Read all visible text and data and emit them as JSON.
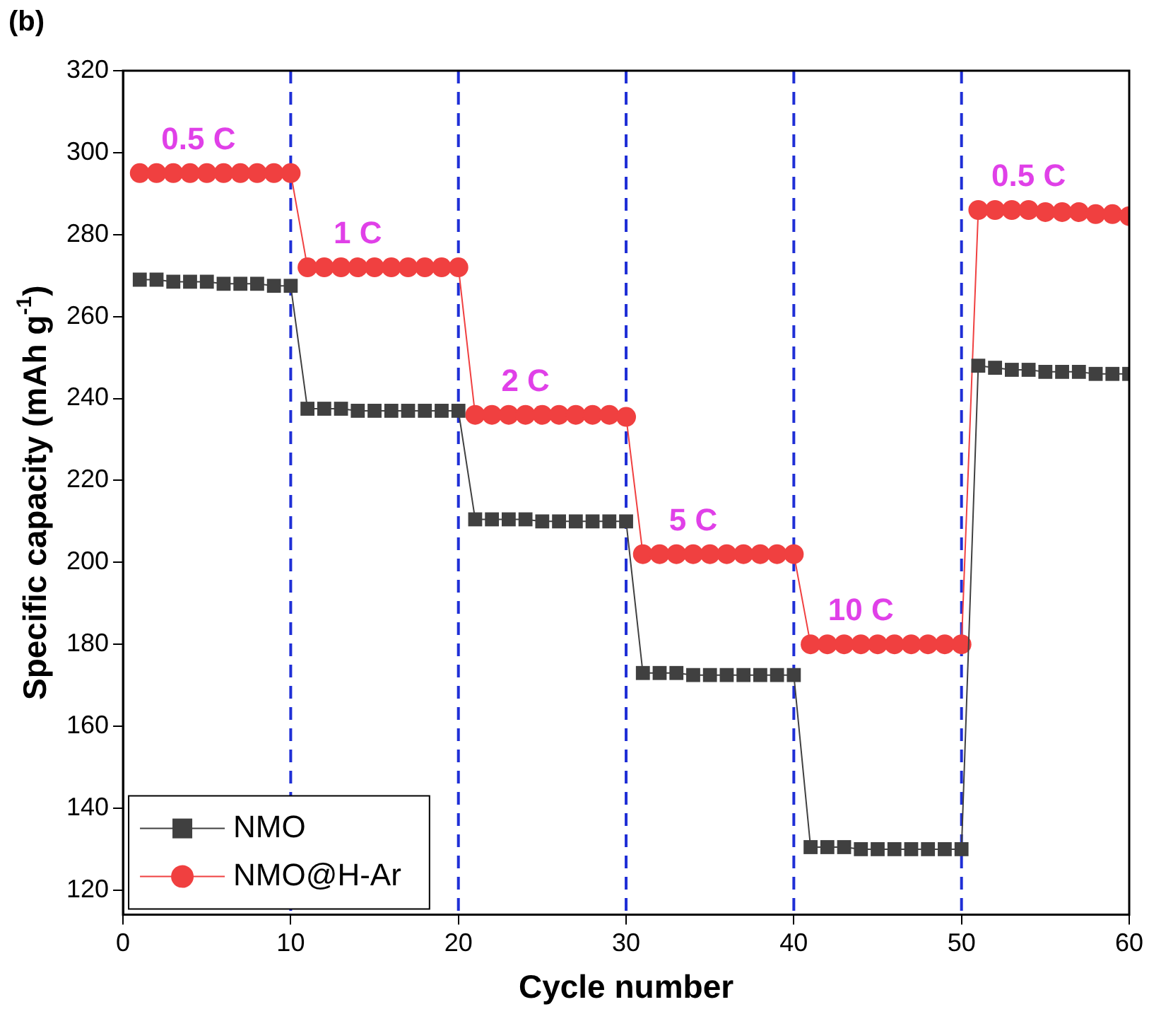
{
  "chart_data": {
    "type": "line",
    "xlabel": "Cycle number",
    "ylabel": "Specific capacity (mAh g$^{-1}$)",
    "x": [
      1,
      2,
      3,
      4,
      5,
      6,
      7,
      8,
      9,
      10,
      11,
      12,
      13,
      14,
      15,
      16,
      17,
      18,
      19,
      20,
      21,
      22,
      23,
      24,
      25,
      26,
      27,
      28,
      29,
      30,
      31,
      32,
      33,
      34,
      35,
      36,
      37,
      38,
      39,
      40,
      41,
      42,
      43,
      44,
      45,
      46,
      47,
      48,
      49,
      50,
      51,
      52,
      53,
      54,
      55,
      56,
      57,
      58,
      59,
      60
    ],
    "series": [
      {
        "name": "NMO",
        "color": "#404040",
        "marker": "square",
        "values": [
          269,
          269,
          268.5,
          268.5,
          268.5,
          268,
          268,
          268,
          267.5,
          267.5,
          237.5,
          237.5,
          237.5,
          237,
          237,
          237,
          237,
          237,
          237,
          237,
          210.5,
          210.5,
          210.5,
          210.5,
          210,
          210,
          210,
          210,
          210,
          210,
          173,
          173,
          173,
          172.5,
          172.5,
          172.5,
          172.5,
          172.5,
          172.5,
          172.5,
          130.5,
          130.5,
          130.5,
          130,
          130,
          130,
          130,
          130,
          130,
          130,
          248,
          247.5,
          247,
          247,
          246.5,
          246.5,
          246.5,
          246,
          246,
          246
        ]
      },
      {
        "name": "NMO@H-Ar",
        "color": "#f04040",
        "marker": "circle",
        "values": [
          295,
          295,
          295,
          295,
          295,
          295,
          295,
          295,
          295,
          295,
          272,
          272,
          272,
          272,
          272,
          272,
          272,
          272,
          272,
          272,
          236,
          236,
          236,
          236,
          236,
          236,
          236,
          236,
          236,
          235.5,
          202,
          202,
          202,
          202,
          202,
          202,
          202,
          202,
          202,
          202,
          180,
          180,
          180,
          180,
          180,
          180,
          180,
          180,
          180,
          180,
          286,
          286,
          286,
          286,
          285.5,
          285.5,
          285.5,
          285,
          285,
          284.5
        ]
      }
    ],
    "xlim": [
      0,
      60
    ],
    "xticks": [
      0,
      10,
      20,
      30,
      40,
      50,
      60
    ],
    "ylim": [
      114,
      320
    ],
    "yticks": [
      120,
      140,
      160,
      180,
      200,
      220,
      240,
      260,
      280,
      300,
      320
    ],
    "ref_lines": [
      {
        "axis": "x",
        "value": 10,
        "color": "#1f2fd6",
        "line_style": "dashed"
      },
      {
        "axis": "x",
        "value": 20,
        "color": "#1f2fd6",
        "line_style": "dashed"
      },
      {
        "axis": "x",
        "value": 30,
        "color": "#1f2fd6",
        "line_style": "dashed"
      },
      {
        "axis": "x",
        "value": 40,
        "color": "#1f2fd6",
        "line_style": "dashed"
      },
      {
        "axis": "x",
        "value": 50,
        "color": "#1f2fd6",
        "line_style": "dashed"
      }
    ],
    "annotations": [
      "(b)",
      "0.5 C",
      "1 C",
      "2 C",
      "5 C",
      "10 C",
      "0.5 C"
    ],
    "legend": "bottom left",
    "grid": false,
    "line_style": "solid"
  }
}
